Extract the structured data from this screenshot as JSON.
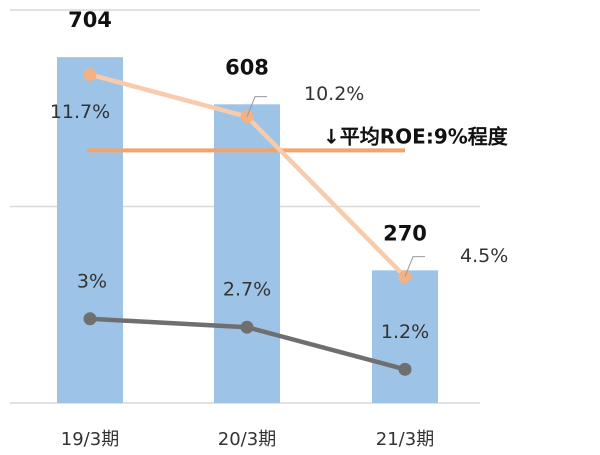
{
  "chart_data": {
    "type": "bar",
    "categories": [
      "19/3期",
      "20/3期",
      "21/3期"
    ],
    "values": [
      704,
      608,
      270
    ],
    "color": "#9dc3e6",
    "ylim": [
      0,
      800
    ],
    "yticks": [
      0,
      400,
      800
    ],
    "grid": true,
    "y2lim": [
      0,
      14
    ],
    "series": [
      {
        "type": "line",
        "axis": "y2",
        "color": "#f8cbad",
        "marker_color": "#f4b183",
        "values": [
          11.7,
          10.2,
          4.5
        ],
        "value_labels": [
          "11.7%",
          "10.2%",
          "4.5%"
        ]
      },
      {
        "type": "line",
        "axis": "y2",
        "color": "#6f6f6f",
        "marker_color": "#6f6f6f",
        "values": [
          3,
          2.7,
          1.2
        ],
        "value_labels": [
          "3%",
          "2.7%",
          "1.2%"
        ]
      }
    ],
    "reference_line": {
      "value": 9,
      "axis": "y2",
      "color": "#f4a46a",
      "label": "↓平均ROE:9%程度"
    }
  }
}
